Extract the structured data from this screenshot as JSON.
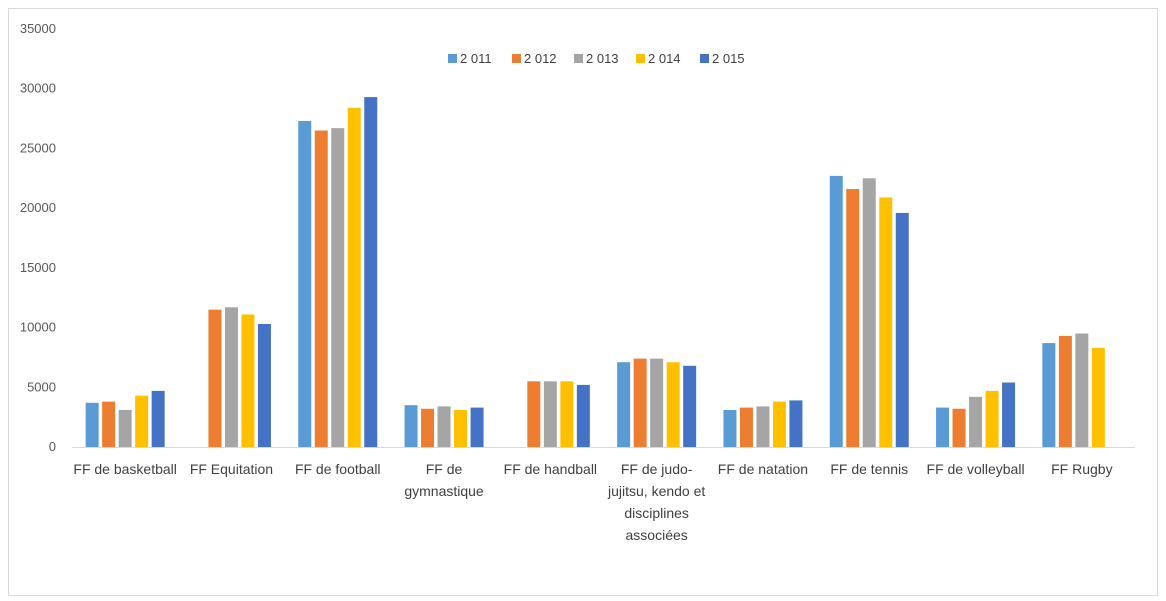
{
  "chart_data": {
    "type": "bar",
    "title": "",
    "xlabel": "",
    "ylabel": "",
    "ylim": [
      0,
      35000
    ],
    "yticks": [
      0,
      5000,
      10000,
      15000,
      20000,
      25000,
      30000,
      35000
    ],
    "grid": false,
    "legend_position": "top-center",
    "categories": [
      "FF de basketball",
      "FF Equitation",
      "FF de football",
      "FF de gymnastique",
      "FF de handball",
      "FF de judo-jujitsu, kendo et disciplines associées",
      "FF de natation",
      "FF de tennis",
      "FF de volleyball",
      "FF Rugby"
    ],
    "category_lines": [
      [
        "FF de basketball"
      ],
      [
        "FF Equitation"
      ],
      [
        "FF de football"
      ],
      [
        "FF de",
        "gymnastique"
      ],
      [
        "FF de handball"
      ],
      [
        "FF de judo-",
        "jujitsu, kendo et",
        "disciplines",
        "associées"
      ],
      [
        "FF de natation"
      ],
      [
        "FF de tennis"
      ],
      [
        "FF de volleyball"
      ],
      [
        "FF Rugby"
      ]
    ],
    "series": [
      {
        "name": "2 011",
        "color": "#5b9bd5",
        "values": [
          3700,
          null,
          27300,
          3500,
          null,
          7100,
          3100,
          22700,
          3300,
          8700
        ]
      },
      {
        "name": "2 012",
        "color": "#ed7d31",
        "values": [
          3800,
          11500,
          26500,
          3200,
          5500,
          7400,
          3300,
          21600,
          3200,
          9300
        ]
      },
      {
        "name": "2 013",
        "color": "#a5a5a5",
        "values": [
          3100,
          11700,
          26700,
          3400,
          5500,
          7400,
          3400,
          22500,
          4200,
          9500
        ]
      },
      {
        "name": "2 014",
        "color": "#ffc000",
        "values": [
          4300,
          11100,
          28400,
          3100,
          5500,
          7100,
          3800,
          20900,
          4700,
          8300
        ]
      },
      {
        "name": "2 015",
        "color": "#4472c4",
        "values": [
          4700,
          10300,
          29300,
          3300,
          5200,
          6800,
          3900,
          19600,
          5400,
          null
        ]
      }
    ]
  }
}
